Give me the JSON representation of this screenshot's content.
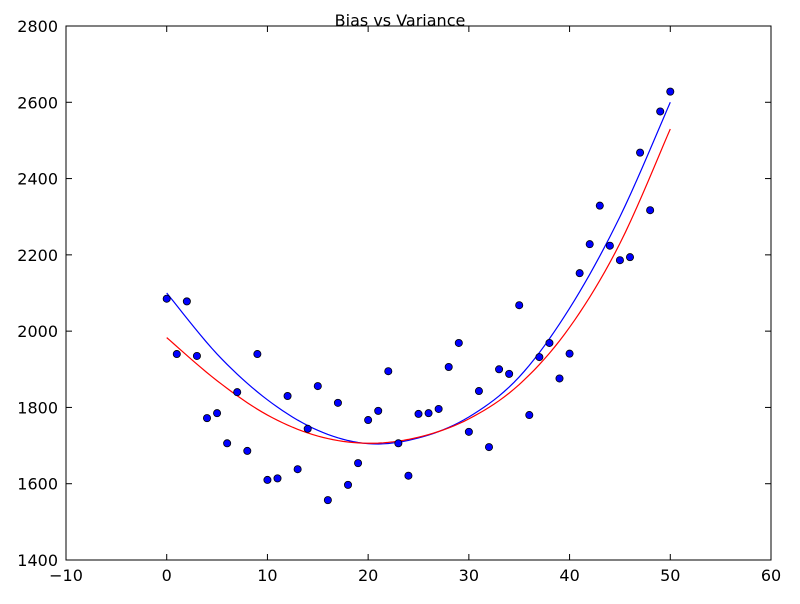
{
  "chart_data": {
    "type": "scatter",
    "title": "Bias vs Variance",
    "xlabel": "",
    "ylabel": "",
    "xlim": [
      -10,
      60
    ],
    "ylim": [
      1400,
      2800
    ],
    "xticks": [
      -10,
      0,
      10,
      20,
      30,
      40,
      50,
      60
    ],
    "yticks": [
      1400,
      1600,
      1800,
      2000,
      2200,
      2400,
      2600,
      2800
    ],
    "grid": false,
    "legend": null,
    "colors": {
      "points": "#0000ff",
      "point_edge": "#000000",
      "curve_blue": "#0000ff",
      "curve_red": "#ff0000",
      "axes": "#000000"
    },
    "series": [
      {
        "kind": "scatter",
        "x": [
          0,
          1,
          2,
          3,
          4,
          5,
          6,
          7,
          8,
          9,
          10,
          11,
          12,
          13,
          14,
          15,
          16,
          17,
          18,
          19,
          20,
          21,
          22,
          23,
          24,
          25,
          26,
          27,
          28,
          29,
          30,
          31,
          32,
          33,
          34,
          35,
          36,
          37,
          38,
          39,
          40,
          41,
          42,
          43,
          44,
          45,
          46,
          47,
          48,
          49,
          50
        ],
        "y": [
          2085,
          1940,
          2078,
          1935,
          1772,
          1785,
          1706,
          1840,
          1686,
          1940,
          1610,
          1614,
          1830,
          1638,
          1744,
          1856,
          1557,
          1812,
          1597,
          1654,
          1767,
          1791,
          1895,
          1706,
          1621,
          1783,
          1785,
          1796,
          1906,
          1969,
          1736,
          1843,
          1696,
          1900,
          1888,
          2068,
          1780,
          1932,
          1969,
          1876,
          1941,
          2152,
          2228,
          2329,
          2224,
          2186,
          2194,
          2468,
          2317,
          2576,
          2628
        ]
      },
      {
        "kind": "line",
        "color_key": "curve_blue",
        "x": [
          0,
          5,
          10,
          15,
          20,
          25,
          30,
          35,
          40,
          45,
          50
        ],
        "y": [
          2100,
          1940,
          1820,
          1740,
          1705,
          1720,
          1775,
          1880,
          2060,
          2300,
          2600
        ]
      },
      {
        "kind": "line",
        "color_key": "curve_red",
        "x": [
          0,
          5,
          10,
          15,
          20,
          25,
          30,
          35,
          40,
          45,
          50
        ],
        "y": [
          1983,
          1870,
          1780,
          1725,
          1706,
          1722,
          1770,
          1860,
          2010,
          2230,
          2530
        ]
      }
    ]
  }
}
